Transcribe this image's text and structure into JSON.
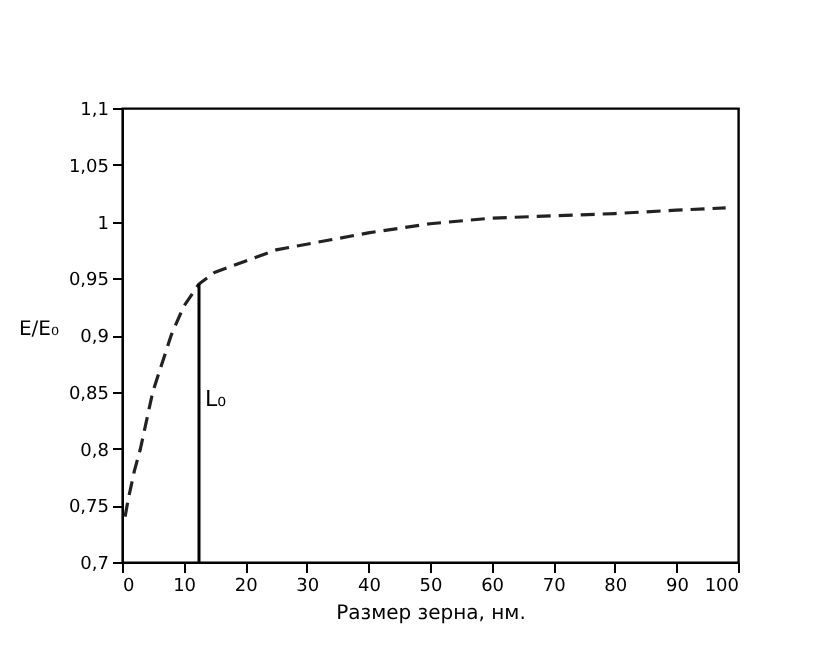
{
  "chart_data": {
    "type": "line",
    "xlabel": "Размер зерна, нм.",
    "ylabel": "E/E₀",
    "x": [
      0.5,
      1,
      2,
      3,
      5,
      8,
      10,
      12.5,
      15,
      20,
      25,
      30,
      40,
      50,
      60,
      70,
      80,
      90,
      98
    ],
    "series": [
      {
        "color": "#222222",
        "values": [
          0.74,
          0.755,
          0.78,
          0.8,
          0.85,
          0.9,
          0.925,
          0.945,
          0.955,
          0.965,
          0.975,
          0.98,
          0.99,
          0.998,
          1.003,
          1.005,
          1.007,
          1.01,
          1.012
        ]
      }
    ],
    "line_style": "dashed",
    "marker": "none",
    "grid": false,
    "xlim": [
      0,
      100
    ],
    "xticks": [
      0,
      10,
      20,
      30,
      40,
      50,
      60,
      70,
      80,
      90,
      100
    ],
    "ylim": [
      0.7,
      1.1
    ],
    "yticks": [
      {
        "value": 0.7,
        "label": "0,7"
      },
      {
        "value": 0.75,
        "label": "0,75"
      },
      {
        "value": 0.8,
        "label": "0,8"
      },
      {
        "value": 0.85,
        "label": "0,85"
      },
      {
        "value": 0.9,
        "label": "0,9"
      },
      {
        "value": 0.95,
        "label": "0,95"
      },
      {
        "value": 1,
        "label": "1"
      },
      {
        "value": 1.05,
        "label": "1,05"
      },
      {
        "value": 1.1,
        "label": "1,1"
      }
    ],
    "ref_lines": [
      {
        "axis": "x",
        "value": 12.5,
        "label": "L₀",
        "color": "#000000",
        "line_style": "solid"
      }
    ]
  }
}
